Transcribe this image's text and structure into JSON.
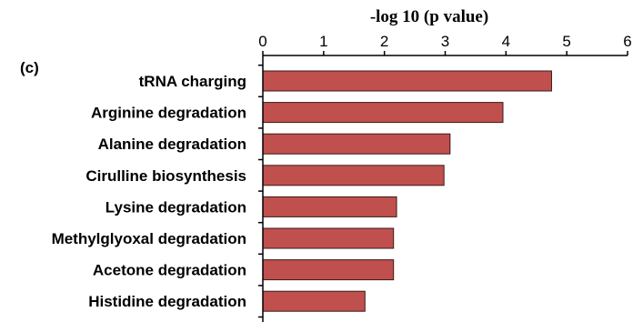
{
  "panel_label": "(c)",
  "colors": {
    "bar_fill": "#c0504d",
    "bar_stroke": "#3a1a1a",
    "axis": "#000000"
  },
  "chart_data": {
    "type": "bar",
    "orientation": "horizontal",
    "title": "",
    "xlabel": "-log 10 (p value)",
    "ylabel": "",
    "xlim": [
      0,
      6
    ],
    "xticks": [
      "0",
      "1",
      "2",
      "3",
      "4",
      "5",
      "6"
    ],
    "x_axis_position": "top",
    "grid": false,
    "categories": [
      "tRNA charging",
      "Arginine degradation",
      "Alanine degradation",
      "Cirulline biosynthesis",
      "Lysine degradation",
      "Methylglyoxal degradation",
      "Acetone degradation",
      "Histidine degradation"
    ],
    "values": [
      4.75,
      3.95,
      3.08,
      2.98,
      2.2,
      2.15,
      2.15,
      1.68
    ]
  }
}
